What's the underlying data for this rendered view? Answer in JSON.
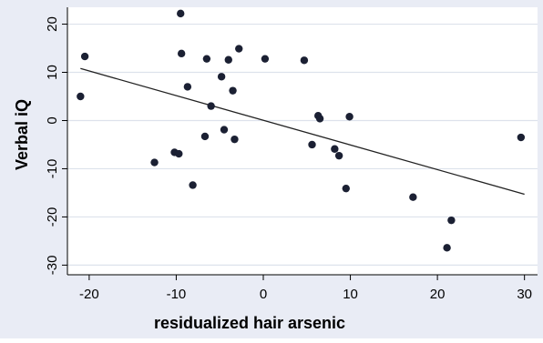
{
  "chart_data": {
    "type": "scatter",
    "title": "",
    "xlabel": "residualized hair arsenic",
    "ylabel": "Verbal iQ",
    "xlim": [
      -22.5,
      31.5
    ],
    "ylim": [
      -32,
      23.5
    ],
    "xticks": [
      -20,
      -10,
      0,
      10,
      20,
      30
    ],
    "yticks": [
      -30,
      -20,
      -10,
      0,
      10,
      20
    ],
    "grid": "horizontal",
    "colors": {
      "outer_background": "#e9ecf5",
      "plot_background": "#ffffff",
      "gridline": "#dde2ec",
      "marker": "#1b2033",
      "fit_line": "#222222"
    },
    "fit_line": {
      "x": [
        -21,
        30
      ],
      "y": [
        10.8,
        -15.3
      ]
    },
    "points": [
      {
        "x": -21.0,
        "y": 5.0
      },
      {
        "x": -20.5,
        "y": 13.3
      },
      {
        "x": -12.5,
        "y": -8.7
      },
      {
        "x": -10.2,
        "y": -6.6
      },
      {
        "x": -9.7,
        "y": -6.9
      },
      {
        "x": -9.5,
        "y": 22.2
      },
      {
        "x": -9.4,
        "y": 13.9
      },
      {
        "x": -8.7,
        "y": 7.0
      },
      {
        "x": -8.1,
        "y": -13.4
      },
      {
        "x": -6.7,
        "y": -3.3
      },
      {
        "x": -6.5,
        "y": 12.8
      },
      {
        "x": -6.0,
        "y": 3.0
      },
      {
        "x": -4.8,
        "y": 9.1
      },
      {
        "x": -4.5,
        "y": -1.9
      },
      {
        "x": -4.0,
        "y": 12.6
      },
      {
        "x": -3.5,
        "y": 6.2
      },
      {
        "x": -3.3,
        "y": -3.9
      },
      {
        "x": -2.8,
        "y": 14.9
      },
      {
        "x": 0.2,
        "y": 12.8
      },
      {
        "x": 4.7,
        "y": 12.5
      },
      {
        "x": 5.6,
        "y": -5.0
      },
      {
        "x": 6.3,
        "y": 1.0
      },
      {
        "x": 6.5,
        "y": 0.4
      },
      {
        "x": 8.2,
        "y": -5.9
      },
      {
        "x": 8.7,
        "y": -7.3
      },
      {
        "x": 9.5,
        "y": -14.1
      },
      {
        "x": 9.9,
        "y": 0.8
      },
      {
        "x": 17.2,
        "y": -15.9
      },
      {
        "x": 21.1,
        "y": -26.4
      },
      {
        "x": 21.6,
        "y": -20.7
      },
      {
        "x": 29.6,
        "y": -3.5
      }
    ]
  }
}
